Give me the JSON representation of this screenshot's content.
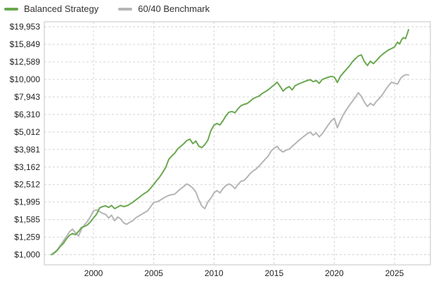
{
  "chart_data": {
    "type": "line",
    "title": "",
    "xlabel": "",
    "ylabel": "",
    "legend_position": "top-left",
    "grid": "dashed",
    "colors": {
      "grid": "#d4d4d4",
      "border": "#c4c4c4",
      "tick_text": "#222222",
      "background": "#ffffff"
    },
    "x_axis": {
      "range": [
        1995.91,
        2027.98
      ],
      "ticks": [
        2000,
        2005,
        2010,
        2015,
        2020,
        2025
      ]
    },
    "y_axis": {
      "scale": "log",
      "range": [
        875,
        21310
      ],
      "ticks": [
        {
          "label": "$1,000",
          "value": 1000
        },
        {
          "label": "$1,259",
          "value": 1259
        },
        {
          "label": "$1,585",
          "value": 1585
        },
        {
          "label": "$1,995",
          "value": 1995
        },
        {
          "label": "$2,512",
          "value": 2512
        },
        {
          "label": "$3,162",
          "value": 3162
        },
        {
          "label": "$3,981",
          "value": 3981
        },
        {
          "label": "$5,012",
          "value": 5012
        },
        {
          "label": "$6,310",
          "value": 6310
        },
        {
          "label": "$7,943",
          "value": 7943
        },
        {
          "label": "$10,000",
          "value": 10000
        },
        {
          "label": "$12,589",
          "value": 12589
        },
        {
          "label": "$15,849",
          "value": 15849
        },
        {
          "label": "$19,953",
          "value": 19953
        }
      ]
    },
    "series": [
      {
        "name": "Balanced Strategy",
        "color": "#6aa84f",
        "points": [
          [
            1996.5,
            1000
          ],
          [
            1996.75,
            1025
          ],
          [
            1997,
            1060
          ],
          [
            1997.25,
            1115
          ],
          [
            1997.5,
            1160
          ],
          [
            1997.75,
            1230
          ],
          [
            1998,
            1290
          ],
          [
            1998.25,
            1320
          ],
          [
            1998.5,
            1300
          ],
          [
            1998.75,
            1355
          ],
          [
            1999,
            1430
          ],
          [
            1999.25,
            1450
          ],
          [
            1999.5,
            1480
          ],
          [
            1999.75,
            1540
          ],
          [
            2000,
            1620
          ],
          [
            2000.25,
            1700
          ],
          [
            2000.5,
            1850
          ],
          [
            2000.75,
            1880
          ],
          [
            2001,
            1900
          ],
          [
            2001.25,
            1860
          ],
          [
            2001.5,
            1910
          ],
          [
            2001.75,
            1830
          ],
          [
            2002,
            1870
          ],
          [
            2002.25,
            1910
          ],
          [
            2002.5,
            1880
          ],
          [
            2002.75,
            1900
          ],
          [
            2003,
            1940
          ],
          [
            2003.25,
            1990
          ],
          [
            2003.5,
            2050
          ],
          [
            2003.75,
            2110
          ],
          [
            2004,
            2180
          ],
          [
            2004.25,
            2240
          ],
          [
            2004.5,
            2300
          ],
          [
            2004.75,
            2400
          ],
          [
            2005,
            2520
          ],
          [
            2005.25,
            2650
          ],
          [
            2005.5,
            2780
          ],
          [
            2005.75,
            2950
          ],
          [
            2006,
            3150
          ],
          [
            2006.25,
            3500
          ],
          [
            2006.5,
            3660
          ],
          [
            2006.75,
            3800
          ],
          [
            2007,
            4020
          ],
          [
            2007.25,
            4150
          ],
          [
            2007.5,
            4300
          ],
          [
            2007.75,
            4480
          ],
          [
            2008,
            4560
          ],
          [
            2008.25,
            4300
          ],
          [
            2008.5,
            4450
          ],
          [
            2008.75,
            4150
          ],
          [
            2009,
            4080
          ],
          [
            2009.25,
            4250
          ],
          [
            2009.5,
            4500
          ],
          [
            2009.75,
            5100
          ],
          [
            2010,
            5480
          ],
          [
            2010.25,
            5600
          ],
          [
            2010.5,
            5500
          ],
          [
            2010.75,
            5800
          ],
          [
            2011,
            6200
          ],
          [
            2011.25,
            6500
          ],
          [
            2011.5,
            6550
          ],
          [
            2011.75,
            6450
          ],
          [
            2012,
            6800
          ],
          [
            2012.25,
            7080
          ],
          [
            2012.5,
            7200
          ],
          [
            2012.75,
            7280
          ],
          [
            2013,
            7500
          ],
          [
            2013.25,
            7760
          ],
          [
            2013.5,
            7900
          ],
          [
            2013.75,
            8030
          ],
          [
            2014,
            8300
          ],
          [
            2014.25,
            8500
          ],
          [
            2014.5,
            8710
          ],
          [
            2014.75,
            9000
          ],
          [
            2015,
            9300
          ],
          [
            2015.25,
            9640
          ],
          [
            2015.5,
            9100
          ],
          [
            2015.75,
            8570
          ],
          [
            2016,
            8900
          ],
          [
            2016.25,
            9100
          ],
          [
            2016.5,
            8710
          ],
          [
            2016.75,
            9210
          ],
          [
            2017,
            9400
          ],
          [
            2017.25,
            9550
          ],
          [
            2017.5,
            9700
          ],
          [
            2017.75,
            9850
          ],
          [
            2018,
            9960
          ],
          [
            2018.25,
            9700
          ],
          [
            2018.5,
            9850
          ],
          [
            2018.75,
            9500
          ],
          [
            2019,
            10000
          ],
          [
            2019.25,
            10150
          ],
          [
            2019.5,
            10280
          ],
          [
            2019.75,
            10400
          ],
          [
            2020,
            10300
          ],
          [
            2020.25,
            9600
          ],
          [
            2020.5,
            10400
          ],
          [
            2020.75,
            10900
          ],
          [
            2021,
            11400
          ],
          [
            2021.25,
            11900
          ],
          [
            2021.5,
            12600
          ],
          [
            2021.75,
            13100
          ],
          [
            2022,
            13600
          ],
          [
            2022.25,
            13800
          ],
          [
            2022.5,
            12600
          ],
          [
            2022.75,
            12000
          ],
          [
            2023,
            12700
          ],
          [
            2023.25,
            12300
          ],
          [
            2023.5,
            12800
          ],
          [
            2023.75,
            13400
          ],
          [
            2024,
            13900
          ],
          [
            2024.25,
            14300
          ],
          [
            2024.5,
            14700
          ],
          [
            2024.75,
            15000
          ],
          [
            2025,
            15300
          ],
          [
            2025.25,
            16300
          ],
          [
            2025.42,
            15900
          ],
          [
            2025.58,
            16800
          ],
          [
            2025.75,
            17300
          ],
          [
            2025.92,
            17100
          ],
          [
            2026.08,
            18400
          ],
          [
            2026.17,
            19200
          ]
        ]
      },
      {
        "name": "60/40 Benchmark",
        "color": "#b5b5b5",
        "points": [
          [
            1996.5,
            1000
          ],
          [
            1996.75,
            1030
          ],
          [
            1997,
            1070
          ],
          [
            1997.25,
            1130
          ],
          [
            1997.5,
            1200
          ],
          [
            1997.75,
            1270
          ],
          [
            1998,
            1350
          ],
          [
            1998.25,
            1400
          ],
          [
            1998.5,
            1330
          ],
          [
            1998.75,
            1280
          ],
          [
            1999,
            1400
          ],
          [
            1999.25,
            1480
          ],
          [
            1999.5,
            1550
          ],
          [
            1999.75,
            1650
          ],
          [
            2000,
            1780
          ],
          [
            2000.25,
            1800
          ],
          [
            2000.5,
            1760
          ],
          [
            2000.75,
            1720
          ],
          [
            2001,
            1700
          ],
          [
            2001.25,
            1620
          ],
          [
            2001.5,
            1680
          ],
          [
            2001.75,
            1560
          ],
          [
            2002,
            1640
          ],
          [
            2002.25,
            1600
          ],
          [
            2002.5,
            1520
          ],
          [
            2002.75,
            1490
          ],
          [
            2003,
            1530
          ],
          [
            2003.25,
            1560
          ],
          [
            2003.5,
            1620
          ],
          [
            2003.75,
            1660
          ],
          [
            2004,
            1700
          ],
          [
            2004.25,
            1740
          ],
          [
            2004.5,
            1780
          ],
          [
            2004.75,
            1880
          ],
          [
            2005,
            1990
          ],
          [
            2005.25,
            2000
          ],
          [
            2005.5,
            2040
          ],
          [
            2005.75,
            2090
          ],
          [
            2006,
            2140
          ],
          [
            2006.25,
            2180
          ],
          [
            2006.5,
            2200
          ],
          [
            2006.75,
            2215
          ],
          [
            2007,
            2300
          ],
          [
            2007.25,
            2380
          ],
          [
            2007.5,
            2450
          ],
          [
            2007.75,
            2530
          ],
          [
            2008,
            2480
          ],
          [
            2008.25,
            2400
          ],
          [
            2008.5,
            2280
          ],
          [
            2008.75,
            2050
          ],
          [
            2009,
            1890
          ],
          [
            2009.25,
            1830
          ],
          [
            2009.5,
            2000
          ],
          [
            2009.75,
            2100
          ],
          [
            2010,
            2250
          ],
          [
            2010.25,
            2320
          ],
          [
            2010.5,
            2250
          ],
          [
            2010.75,
            2380
          ],
          [
            2011,
            2480
          ],
          [
            2011.25,
            2530
          ],
          [
            2011.5,
            2480
          ],
          [
            2011.75,
            2380
          ],
          [
            2012,
            2520
          ],
          [
            2012.25,
            2620
          ],
          [
            2012.5,
            2650
          ],
          [
            2012.75,
            2760
          ],
          [
            2013,
            2900
          ],
          [
            2013.25,
            3000
          ],
          [
            2013.5,
            3080
          ],
          [
            2013.75,
            3200
          ],
          [
            2014,
            3350
          ],
          [
            2014.25,
            3500
          ],
          [
            2014.5,
            3640
          ],
          [
            2014.75,
            3900
          ],
          [
            2015,
            4050
          ],
          [
            2015.25,
            4150
          ],
          [
            2015.5,
            3950
          ],
          [
            2015.75,
            3850
          ],
          [
            2016,
            3950
          ],
          [
            2016.25,
            4000
          ],
          [
            2016.5,
            4150
          ],
          [
            2016.75,
            4300
          ],
          [
            2017,
            4450
          ],
          [
            2017.25,
            4600
          ],
          [
            2017.5,
            4750
          ],
          [
            2017.75,
            4900
          ],
          [
            2018,
            5000
          ],
          [
            2018.25,
            4800
          ],
          [
            2018.5,
            4950
          ],
          [
            2018.75,
            4700
          ],
          [
            2019,
            4900
          ],
          [
            2019.25,
            5200
          ],
          [
            2019.5,
            5500
          ],
          [
            2019.75,
            5800
          ],
          [
            2020,
            6000
          ],
          [
            2020.25,
            5300
          ],
          [
            2020.5,
            5800
          ],
          [
            2020.75,
            6300
          ],
          [
            2021,
            6700
          ],
          [
            2021.25,
            7100
          ],
          [
            2021.5,
            7500
          ],
          [
            2021.75,
            7900
          ],
          [
            2022,
            8400
          ],
          [
            2022.25,
            8000
          ],
          [
            2022.5,
            7400
          ],
          [
            2022.75,
            7000
          ],
          [
            2023,
            7300
          ],
          [
            2023.25,
            7100
          ],
          [
            2023.5,
            7500
          ],
          [
            2023.75,
            7800
          ],
          [
            2024,
            8200
          ],
          [
            2024.25,
            8700
          ],
          [
            2024.5,
            9200
          ],
          [
            2024.75,
            9640
          ],
          [
            2025,
            9500
          ],
          [
            2025.25,
            9400
          ],
          [
            2025.5,
            10100
          ],
          [
            2025.75,
            10500
          ],
          [
            2026,
            10650
          ],
          [
            2026.17,
            10600
          ]
        ]
      }
    ]
  }
}
